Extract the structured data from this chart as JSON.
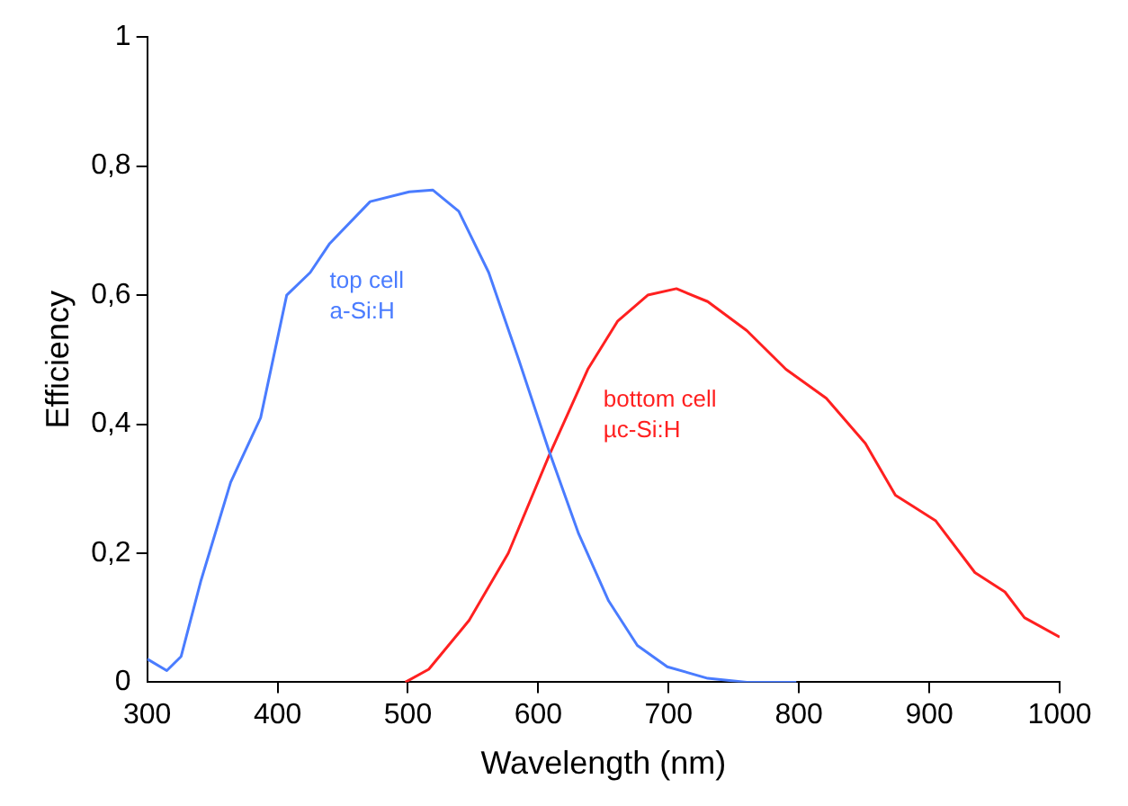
{
  "chart_data": {
    "type": "line",
    "xlabel": "Wavelength (nm)",
    "ylabel": "Efficiency",
    "xlim": [
      300,
      1000
    ],
    "ylim": [
      0,
      1
    ],
    "xticks": [
      300,
      400,
      500,
      600,
      700,
      800,
      900,
      1000
    ],
    "yticks": [
      0,
      {
        "value": 0.2,
        "label": "0,2"
      },
      {
        "value": 0.4,
        "label": "0,4"
      },
      {
        "value": 0.6,
        "label": "0,6"
      },
      {
        "value": 0.8,
        "label": "0,8"
      },
      1
    ],
    "grid": false,
    "legend": false,
    "marker": "none",
    "line_style": "solid",
    "series": [
      {
        "name": "top cell a-Si:H",
        "color": "#4a7cff",
        "x": [
          300,
          315,
          326,
          341,
          364,
          387,
          407,
          425,
          440,
          471,
          501,
          519,
          539,
          562,
          585,
          608,
          631,
          654,
          676,
          699,
          730,
          760,
          798
        ],
        "values": [
          0.036,
          0.018,
          0.04,
          0.156,
          0.31,
          0.41,
          0.6,
          0.635,
          0.68,
          0.745,
          0.76,
          0.763,
          0.73,
          0.635,
          0.5,
          0.36,
          0.23,
          0.126,
          0.057,
          0.024,
          0.006,
          0,
          0
        ]
      },
      {
        "name": "bottom cell µc-Si:H",
        "color": "#ff2020",
        "x": [
          498,
          516,
          547,
          577,
          608,
          638,
          661,
          684,
          706,
          730,
          760,
          790,
          821,
          851,
          874,
          905,
          935,
          958,
          973,
          1000
        ],
        "values": [
          0,
          0.02,
          0.096,
          0.2,
          0.35,
          0.485,
          0.56,
          0.6,
          0.61,
          0.59,
          0.545,
          0.485,
          0.44,
          0.37,
          0.29,
          0.25,
          0.17,
          0.14,
          0.1,
          0.07
        ]
      }
    ]
  }
}
